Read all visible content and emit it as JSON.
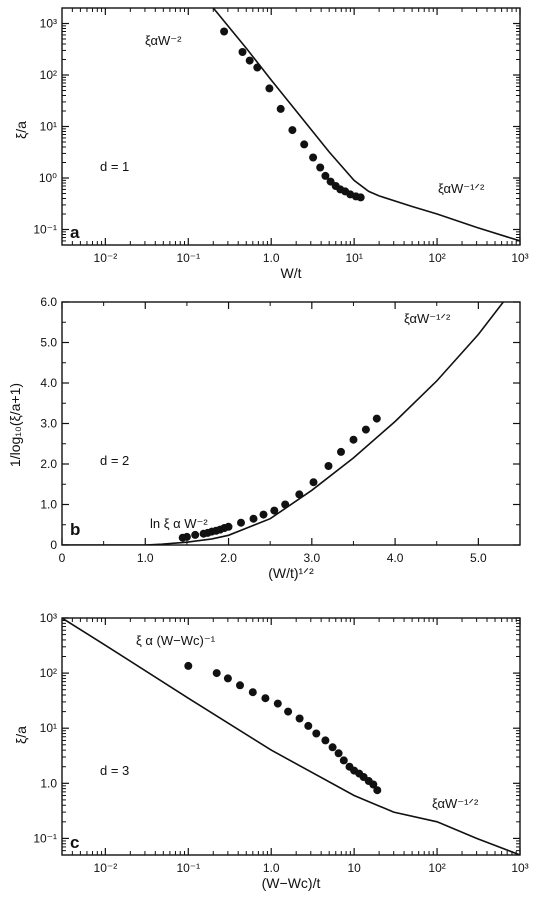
{
  "chart_data": [
    {
      "panel": "a",
      "type": "scatter",
      "scale": "log-log",
      "xlabel": "W/t",
      "ylabel": "ξ/a",
      "xlim": [
        0.003,
        1000
      ],
      "ylim": [
        0.05,
        2000
      ],
      "xticks": [
        0.01,
        0.1,
        1,
        10,
        100,
        1000
      ],
      "xtick_labels": [
        "10⁻²",
        "10⁻¹",
        "1.0",
        "10¹",
        "10²",
        "10³"
      ],
      "yticks": [
        0.1,
        1,
        10,
        100,
        1000
      ],
      "ytick_labels": [
        "10⁻¹",
        "10⁰",
        "10¹",
        "10²",
        "10³"
      ],
      "annotations": [
        "ξαW⁻²",
        "ξαW⁻¹ᐟ²",
        "d = 1"
      ],
      "series": [
        {
          "kind": "points",
          "x": [
            0.27,
            0.45,
            0.55,
            0.68,
            0.95,
            1.3,
            1.8,
            2.5,
            3.2,
            3.9,
            4.5,
            5.2,
            6.0,
            6.8,
            7.8,
            9.0,
            10.5,
            12.0
          ],
          "y": [
            700,
            280,
            190,
            140,
            55,
            22,
            8.5,
            4.5,
            2.5,
            1.6,
            1.1,
            0.85,
            0.7,
            0.6,
            0.55,
            0.48,
            0.44,
            0.42
          ]
        },
        {
          "kind": "curve",
          "x": [
            0.2,
            0.5,
            1,
            2,
            5,
            10,
            15,
            20,
            50,
            100,
            300,
            1000
          ],
          "y": [
            2000,
            330,
            80,
            20,
            3.2,
            0.9,
            0.55,
            0.45,
            0.28,
            0.2,
            0.11,
            0.06
          ]
        }
      ]
    },
    {
      "panel": "b",
      "type": "scatter",
      "scale": "linear",
      "xlabel": "(W/t)¹ᐟ²",
      "ylabel": "1/log₁₀(ξ/a+1)",
      "xlim": [
        0,
        5.5
      ],
      "ylim": [
        0,
        6.0
      ],
      "xticks": [
        0,
        1.0,
        2.0,
        3.0,
        4.0,
        5.0
      ],
      "xtick_labels": [
        "0",
        "1.0",
        "2.0",
        "3.0",
        "4.0",
        "5.0"
      ],
      "yticks": [
        0,
        1.0,
        2.0,
        3.0,
        4.0,
        5.0,
        6.0
      ],
      "ytick_labels": [
        "0",
        "1.0",
        "2.0",
        "3.0",
        "4.0",
        "5.0",
        "6.0"
      ],
      "annotations": [
        "ξαW⁻¹ᐟ²",
        "ln ξ α W⁻²",
        "d = 2"
      ],
      "series": [
        {
          "kind": "points",
          "x": [
            1.45,
            1.5,
            1.6,
            1.7,
            1.75,
            1.8,
            1.85,
            1.9,
            1.95,
            2.0,
            2.15,
            2.3,
            2.42,
            2.55,
            2.68,
            2.85,
            3.02,
            3.2,
            3.35,
            3.5,
            3.65,
            3.78
          ],
          "y": [
            0.18,
            0.2,
            0.25,
            0.28,
            0.3,
            0.33,
            0.35,
            0.38,
            0.42,
            0.45,
            0.55,
            0.65,
            0.75,
            0.85,
            1.0,
            1.25,
            1.55,
            1.95,
            2.3,
            2.6,
            2.85,
            3.12
          ]
        },
        {
          "kind": "curve",
          "x": [
            0,
            1.0,
            1.2,
            1.5,
            1.8,
            2.0,
            2.5,
            3.0,
            3.5,
            4.0,
            4.5,
            5.0,
            5.3
          ],
          "y": [
            0,
            0,
            0.02,
            0.07,
            0.15,
            0.24,
            0.65,
            1.35,
            2.15,
            3.05,
            4.05,
            5.2,
            6.0
          ]
        }
      ]
    },
    {
      "panel": "c",
      "type": "scatter",
      "scale": "log-log",
      "xlabel": "(W−Wc)/t",
      "ylabel": "ξ/a",
      "xlim": [
        0.003,
        1000
      ],
      "ylim": [
        0.05,
        1000
      ],
      "xticks": [
        0.01,
        0.1,
        1,
        10,
        100,
        1000
      ],
      "xtick_labels": [
        "10⁻²",
        "10⁻¹",
        "1.0",
        "10",
        "10²",
        "10³"
      ],
      "yticks": [
        0.1,
        1,
        10,
        100,
        1000
      ],
      "ytick_labels": [
        "10⁻¹",
        "1.0",
        "10¹",
        "10²",
        "10³"
      ],
      "annotations": [
        "ξ α (W−Wc)⁻¹",
        "ξαW⁻¹ᐟ²",
        "d = 3"
      ],
      "series": [
        {
          "kind": "points",
          "x": [
            0.1,
            0.22,
            0.3,
            0.42,
            0.6,
            0.85,
            1.2,
            1.6,
            2.2,
            2.8,
            3.5,
            4.5,
            5.5,
            6.5,
            7.5,
            8.8,
            10,
            11.5,
            13,
            15,
            17,
            19
          ],
          "y": [
            135,
            100,
            80,
            60,
            45,
            35,
            28,
            20,
            15,
            11,
            8.0,
            6.0,
            4.5,
            3.5,
            2.6,
            2.0,
            1.7,
            1.5,
            1.3,
            1.1,
            0.95,
            0.75
          ]
        },
        {
          "kind": "curve",
          "x": [
            0.003,
            0.01,
            0.1,
            1,
            10,
            30,
            100,
            300,
            1000
          ],
          "y": [
            1000,
            320,
            35,
            4.0,
            0.6,
            0.3,
            0.2,
            0.1,
            0.05
          ]
        }
      ]
    }
  ]
}
